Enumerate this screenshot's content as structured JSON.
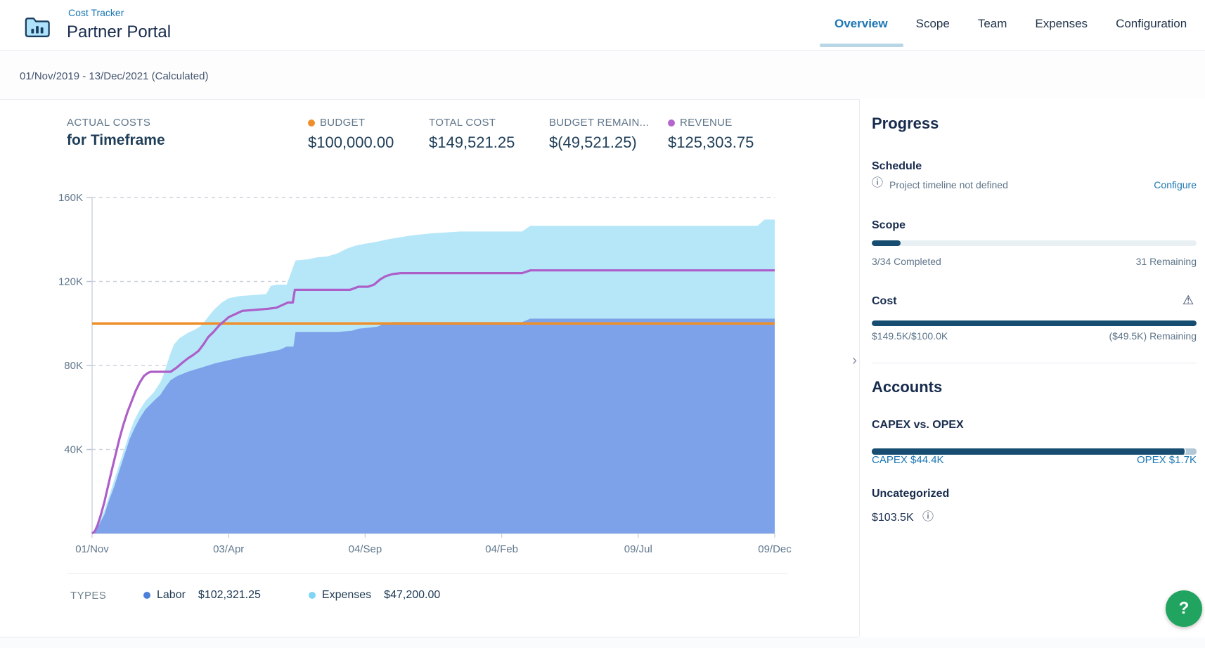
{
  "header": {
    "breadcrumb": "Cost Tracker",
    "title": "Partner Portal",
    "tabs": [
      {
        "label": "Overview",
        "active": true
      },
      {
        "label": "Scope",
        "active": false
      },
      {
        "label": "Team",
        "active": false
      },
      {
        "label": "Expenses",
        "active": false
      },
      {
        "label": "Configuration",
        "active": false
      }
    ]
  },
  "date_range": "01/Nov/2019 - 13/Dec/2021 (Calculated)",
  "stats": {
    "title_line1": "ACTUAL COSTS",
    "title_line2": "for Timeframe",
    "items": [
      {
        "label": "BUDGET",
        "value": "$100,000.00",
        "dot_color": "#ee8f2b"
      },
      {
        "label": "TOTAL COST",
        "value": "$149,521.25",
        "dot_color": ""
      },
      {
        "label": "BUDGET REMAIN...",
        "value": "$(49,521.25)",
        "dot_color": ""
      },
      {
        "label": "REVENUE",
        "value": "$125,303.75",
        "dot_color": "#b565cd"
      }
    ]
  },
  "chart_data": {
    "type": "area",
    "title": "Actual costs for timeframe",
    "x_ticks": [
      "01/Nov",
      "03/Apr",
      "04/Sep",
      "04/Feb",
      "09/Jul",
      "09/Dec"
    ],
    "y_ticks": [
      {
        "label": "40K",
        "value": 40
      },
      {
        "label": "80K",
        "value": 80
      },
      {
        "label": "120K",
        "value": 120
      },
      {
        "label": "160K",
        "value": 160
      }
    ],
    "y_max": 160,
    "unit": "K USD",
    "grid": "dashed",
    "series": [
      {
        "name": "Labor",
        "type": "area",
        "color": "#7da2e9",
        "final_value_k": 102.3,
        "points": [
          [
            0,
            0
          ],
          [
            0.005,
            1.5
          ],
          [
            0.01,
            4
          ],
          [
            0.018,
            9
          ],
          [
            0.025,
            16
          ],
          [
            0.032,
            22
          ],
          [
            0.04,
            30
          ],
          [
            0.048,
            38
          ],
          [
            0.055,
            45
          ],
          [
            0.062,
            50
          ],
          [
            0.07,
            55
          ],
          [
            0.078,
            59
          ],
          [
            0.09,
            63
          ],
          [
            0.1,
            66
          ],
          [
            0.108,
            70
          ],
          [
            0.115,
            73
          ],
          [
            0.125,
            75
          ],
          [
            0.14,
            77
          ],
          [
            0.16,
            79
          ],
          [
            0.18,
            81
          ],
          [
            0.2,
            82.5
          ],
          [
            0.22,
            84
          ],
          [
            0.245,
            85.5
          ],
          [
            0.26,
            86.5
          ],
          [
            0.275,
            87.5
          ],
          [
            0.285,
            89
          ],
          [
            0.295,
            89
          ],
          [
            0.298,
            96
          ],
          [
            0.36,
            96
          ],
          [
            0.38,
            96.5
          ],
          [
            0.39,
            97.5
          ],
          [
            0.405,
            98
          ],
          [
            0.418,
            98.5
          ],
          [
            0.425,
            99.5
          ],
          [
            0.432,
            100
          ],
          [
            0.44,
            100.7
          ],
          [
            0.63,
            100.7
          ],
          [
            0.642,
            102.3
          ],
          [
            1,
            102.3
          ]
        ]
      },
      {
        "name": "Expenses (stacked top = Labor + Expenses)",
        "type": "area",
        "color": "#b6e7f9",
        "final_value_k": 149.5,
        "points": [
          [
            0,
            0
          ],
          [
            0.005,
            2
          ],
          [
            0.01,
            5
          ],
          [
            0.018,
            11
          ],
          [
            0.025,
            18
          ],
          [
            0.032,
            25
          ],
          [
            0.04,
            33
          ],
          [
            0.048,
            41
          ],
          [
            0.055,
            48
          ],
          [
            0.062,
            54
          ],
          [
            0.07,
            59
          ],
          [
            0.078,
            63
          ],
          [
            0.09,
            67
          ],
          [
            0.1,
            72
          ],
          [
            0.105,
            76
          ],
          [
            0.11,
            81
          ],
          [
            0.115,
            86
          ],
          [
            0.12,
            90
          ],
          [
            0.128,
            93
          ],
          [
            0.14,
            95.5
          ],
          [
            0.15,
            97
          ],
          [
            0.158,
            98.5
          ],
          [
            0.165,
            101
          ],
          [
            0.172,
            104
          ],
          [
            0.18,
            107
          ],
          [
            0.19,
            110
          ],
          [
            0.2,
            112
          ],
          [
            0.215,
            113
          ],
          [
            0.235,
            113.5
          ],
          [
            0.255,
            114
          ],
          [
            0.262,
            118
          ],
          [
            0.272,
            118.5
          ],
          [
            0.285,
            118.5
          ],
          [
            0.298,
            130
          ],
          [
            0.315,
            130.5
          ],
          [
            0.33,
            131.5
          ],
          [
            0.345,
            132
          ],
          [
            0.36,
            133.5
          ],
          [
            0.372,
            135.5
          ],
          [
            0.385,
            137
          ],
          [
            0.4,
            138
          ],
          [
            0.418,
            139
          ],
          [
            0.432,
            140
          ],
          [
            0.45,
            141
          ],
          [
            0.47,
            142
          ],
          [
            0.5,
            143
          ],
          [
            0.54,
            143.8
          ],
          [
            0.63,
            143.8
          ],
          [
            0.642,
            146.5
          ],
          [
            0.975,
            146.5
          ],
          [
            0.985,
            149.5
          ],
          [
            1,
            149.5
          ]
        ]
      },
      {
        "name": "Budget",
        "type": "hline",
        "color": "#ee8f2b",
        "value": 100
      },
      {
        "name": "Revenue",
        "type": "line",
        "color": "#ad5fc8",
        "final_value_k": 125.3,
        "points": [
          [
            0,
            0
          ],
          [
            0.004,
            1
          ],
          [
            0.008,
            4
          ],
          [
            0.013,
            9
          ],
          [
            0.018,
            15
          ],
          [
            0.023,
            22
          ],
          [
            0.028,
            29
          ],
          [
            0.034,
            37
          ],
          [
            0.04,
            45
          ],
          [
            0.046,
            52
          ],
          [
            0.052,
            58
          ],
          [
            0.058,
            63
          ],
          [
            0.064,
            68
          ],
          [
            0.07,
            72
          ],
          [
            0.076,
            75
          ],
          [
            0.082,
            76.5
          ],
          [
            0.086,
            77
          ],
          [
            0.115,
            77
          ],
          [
            0.124,
            79
          ],
          [
            0.133,
            81.5
          ],
          [
            0.141,
            83.5
          ],
          [
            0.148,
            85
          ],
          [
            0.156,
            87
          ],
          [
            0.163,
            90
          ],
          [
            0.17,
            93.5
          ],
          [
            0.178,
            96
          ],
          [
            0.186,
            99
          ],
          [
            0.193,
            101
          ],
          [
            0.2,
            103
          ],
          [
            0.21,
            104.5
          ],
          [
            0.22,
            106
          ],
          [
            0.24,
            106.5
          ],
          [
            0.258,
            107
          ],
          [
            0.27,
            107.5
          ],
          [
            0.28,
            109
          ],
          [
            0.287,
            110
          ],
          [
            0.294,
            110
          ],
          [
            0.297,
            116
          ],
          [
            0.378,
            116
          ],
          [
            0.39,
            117.5
          ],
          [
            0.404,
            117.5
          ],
          [
            0.413,
            118.5
          ],
          [
            0.422,
            121
          ],
          [
            0.43,
            122.5
          ],
          [
            0.44,
            123.5
          ],
          [
            0.452,
            124
          ],
          [
            0.63,
            124
          ],
          [
            0.642,
            125.3
          ],
          [
            1,
            125.3
          ]
        ]
      }
    ]
  },
  "legend": {
    "label": "TYPES",
    "items": [
      {
        "name": "Labor",
        "value": "$102,321.25",
        "color": "#4d80d8"
      },
      {
        "name": "Expenses",
        "value": "$47,200.00",
        "color": "#80d5f5"
      }
    ]
  },
  "sidebar": {
    "progress": {
      "title": "Progress",
      "schedule": {
        "title": "Schedule",
        "message": "Project timeline not defined",
        "action": "Configure"
      },
      "scope": {
        "title": "Scope",
        "completed": 3,
        "total": 34,
        "left_label": "3/34 Completed",
        "right_label": "31 Remaining"
      },
      "cost": {
        "title": "Cost",
        "actual_k": 149.5,
        "budget_k": 100,
        "left_label": "$149.5K/$100.0K",
        "right_label": "($49.5K) Remaining"
      }
    },
    "accounts": {
      "title": "Accounts",
      "capex_opex": {
        "title": "CAPEX vs. OPEX",
        "capex_value_k": 44.4,
        "opex_value_k": 1.7,
        "left_label": "CAPEX $44.4K",
        "right_label": "OPEX $1.7K"
      },
      "uncategorized": {
        "title": "Uncategorized",
        "value": "$103.5K"
      }
    }
  },
  "icons": {
    "project": "bar-chart-folder",
    "info": "ⓘ",
    "warning": "⚠",
    "chevron": "›",
    "help": "?"
  },
  "colors": {
    "accent_blue": "#1b76b4",
    "budget_orange": "#ee8f2b",
    "revenue_purple": "#ad5fc8",
    "labor_area": "#7da2e9",
    "expenses_area": "#b6e7f9",
    "progress_fill": "#174d70",
    "help_green": "#21a45f"
  }
}
